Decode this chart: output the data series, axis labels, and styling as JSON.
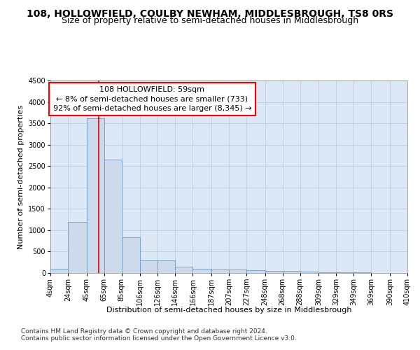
{
  "title": "108, HOLLOWFIELD, COULBY NEWHAM, MIDDLESBROUGH, TS8 0RS",
  "subtitle": "Size of property relative to semi-detached houses in Middlesbrough",
  "xlabel": "Distribution of semi-detached houses by size in Middlesbrough",
  "ylabel": "Number of semi-detached properties",
  "footnote1": "Contains HM Land Registry data © Crown copyright and database right 2024.",
  "footnote2": "Contains public sector information licensed under the Open Government Licence v3.0.",
  "annotation_title": "108 HOLLOWFIELD: 59sqm",
  "annotation_line1": "← 8% of semi-detached houses are smaller (733)",
  "annotation_line2": "92% of semi-detached houses are larger (8,345) →",
  "property_size": 59,
  "bar_left_edges": [
    4,
    24,
    45,
    65,
    85,
    106,
    126,
    146,
    166,
    187,
    207,
    227,
    248,
    268,
    288,
    309,
    329,
    349,
    369,
    390
  ],
  "bar_widths": [
    20,
    21,
    20,
    20,
    21,
    20,
    20,
    20,
    21,
    20,
    20,
    21,
    20,
    20,
    21,
    20,
    20,
    20,
    21,
    20
  ],
  "bar_heights": [
    100,
    1200,
    3620,
    2650,
    840,
    300,
    300,
    150,
    100,
    80,
    75,
    65,
    55,
    45,
    30,
    20,
    15,
    10,
    8,
    5
  ],
  "bar_color": "#ccdaeb",
  "bar_edge_color": "#6b9dc4",
  "vline_color": "#cc0000",
  "vline_x": 59,
  "ylim": [
    0,
    4500
  ],
  "yticks": [
    0,
    500,
    1000,
    1500,
    2000,
    2500,
    3000,
    3500,
    4000,
    4500
  ],
  "tick_labels": [
    "4sqm",
    "24sqm",
    "45sqm",
    "65sqm",
    "85sqm",
    "106sqm",
    "126sqm",
    "146sqm",
    "166sqm",
    "187sqm",
    "207sqm",
    "227sqm",
    "248sqm",
    "268sqm",
    "288sqm",
    "309sqm",
    "329sqm",
    "349sqm",
    "369sqm",
    "390sqm",
    "410sqm"
  ],
  "background_color": "#ffffff",
  "plot_bg_color": "#dce8f5",
  "grid_color": "#b8cfe0",
  "title_fontsize": 10,
  "subtitle_fontsize": 9,
  "axis_label_fontsize": 8,
  "tick_fontsize": 7,
  "annotation_fontsize": 8,
  "footnote_fontsize": 6.5
}
